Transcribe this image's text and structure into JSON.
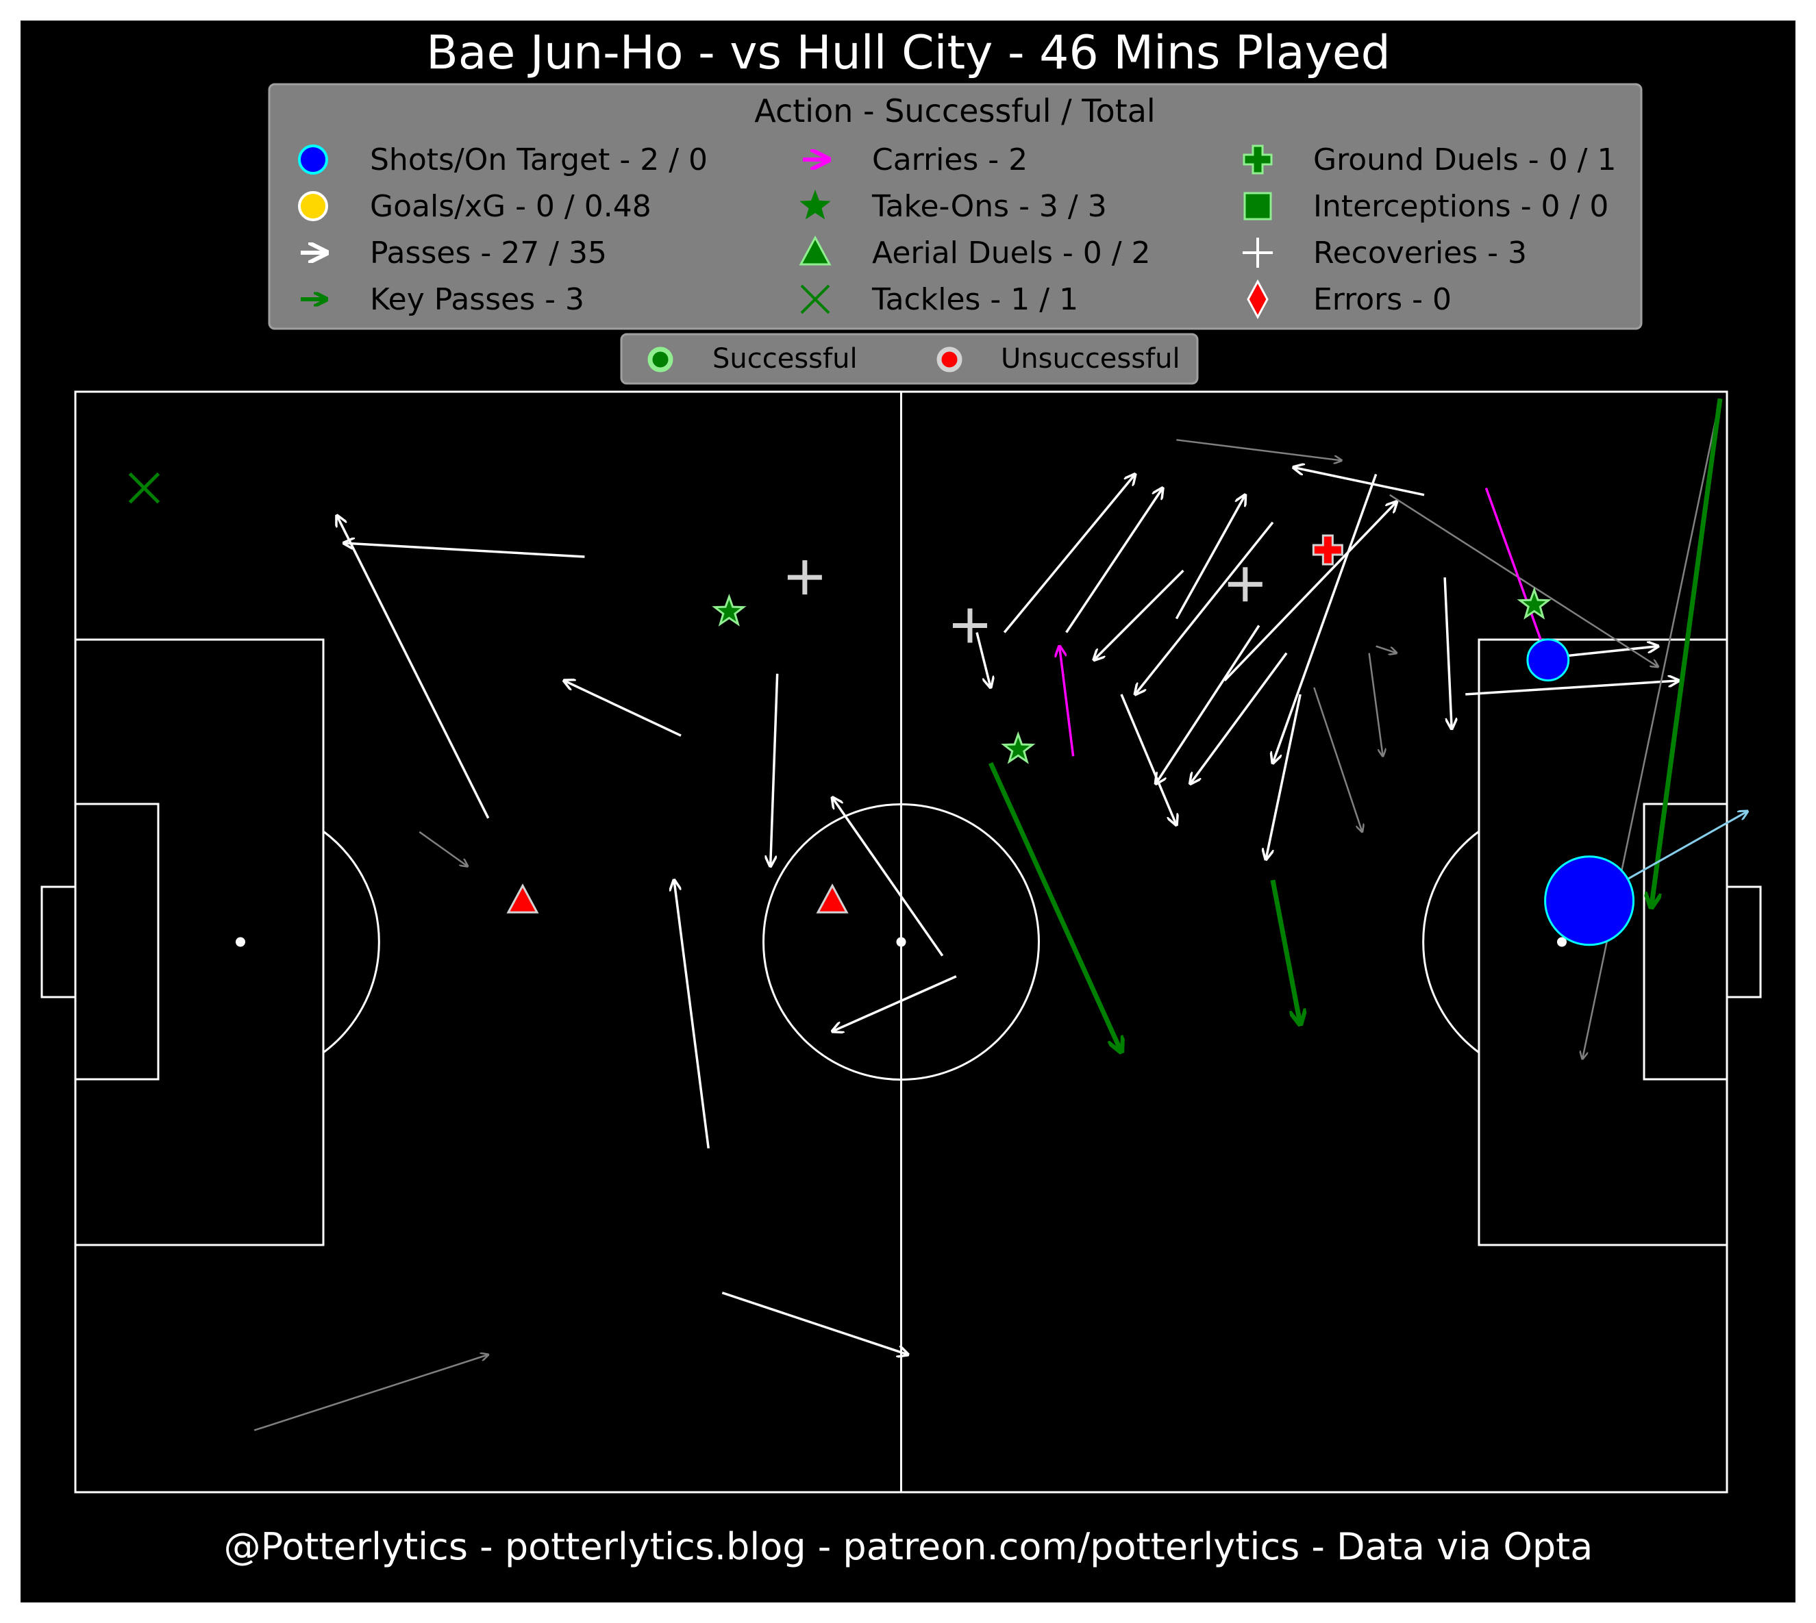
{
  "title": "Bae Jun-Ho - vs Hull City - 46 Mins Played",
  "footer": "@Potterlytics - potterlytics.blog - patreon.com/potterlytics - Data via Opta",
  "colors": {
    "background": "#000000",
    "pitch_lines": "#ffffff",
    "legend_box": "#808080",
    "pass": "#ffffff",
    "pass_unsuccessful": "#808080",
    "key_pass": "#008000",
    "carry": "#ff00ff",
    "shot": "#0000ff",
    "shot_edge": "#00ffff",
    "goal": "#ffd700",
    "success_marker": "#90ee90",
    "fail_marker": "#ff0000",
    "recovery": "#d3d3d3",
    "tackle": "#008000",
    "error": "#ff0000",
    "shot_trajectory": "#87ceeb"
  },
  "legend": {
    "title": "Action - Successful / Total",
    "items": [
      {
        "label": "Shots/On Target - 2 / 0",
        "icon": "shot-circle-icon"
      },
      {
        "label": "Goals/xG - 0 / 0.48",
        "icon": "goal-circle-icon"
      },
      {
        "label": "Passes - 27 / 35",
        "icon": "pass-arrow-icon"
      },
      {
        "label": "Key Passes - 3",
        "icon": "key-pass-arrow-icon"
      },
      {
        "label": "Carries - 2",
        "icon": "carry-arrow-icon"
      },
      {
        "label": "Take-Ons - 3 / 3",
        "icon": "take-on-star-icon"
      },
      {
        "label": "Aerial Duels - 0 / 2",
        "icon": "aerial-triangle-icon"
      },
      {
        "label": "Tackles - 1 / 1",
        "icon": "tackle-x-icon"
      },
      {
        "label": "Ground Duels - 0 / 1",
        "icon": "ground-duel-cross-icon"
      },
      {
        "label": "Interceptions - 0 / 0",
        "icon": "interception-square-icon"
      },
      {
        "label": "Recoveries - 3",
        "icon": "recovery-plus-icon"
      },
      {
        "label": "Errors - 0",
        "icon": "error-diamond-icon"
      }
    ]
  },
  "outcome_legend": {
    "successful": "Successful",
    "unsuccessful": "Unsuccessful"
  },
  "chart_data": {
    "type": "scatter",
    "pitch": {
      "length": 120,
      "width": 80,
      "attacking_direction": "left-to-right"
    },
    "passes": [
      {
        "x": [
          37.0,
          19.5
        ],
        "y": [
          12.0,
          11.0
        ],
        "success": true
      },
      {
        "x": [
          30.0,
          19.0
        ],
        "y": [
          31.0,
          9.0
        ],
        "success": true
      },
      {
        "x": [
          44.0,
          35.5
        ],
        "y": [
          25.0,
          21.0
        ],
        "success": true
      },
      {
        "x": [
          51.0,
          50.5
        ],
        "y": [
          20.5,
          34.5
        ],
        "success": true
      },
      {
        "x": [
          46.0,
          43.5
        ],
        "y": [
          55.0,
          35.5
        ],
        "success": true
      },
      {
        "x": [
          64.0,
          55.0
        ],
        "y": [
          42.5,
          46.5
        ],
        "success": true
      },
      {
        "x": [
          63.0,
          55.0
        ],
        "y": [
          41.0,
          29.5
        ],
        "success": true
      },
      {
        "x": [
          47.0,
          60.5
        ],
        "y": [
          65.5,
          70.0
        ],
        "success": true
      },
      {
        "x": [
          65.5,
          66.5
        ],
        "y": [
          17.5,
          21.5
        ],
        "success": true
      },
      {
        "x": [
          67.5,
          77.0
        ],
        "y": [
          17.5,
          6.0
        ],
        "success": true
      },
      {
        "x": [
          72.0,
          79.0
        ],
        "y": [
          17.5,
          7.0
        ],
        "success": true
      },
      {
        "x": [
          80.5,
          74.0
        ],
        "y": [
          13.0,
          19.5
        ],
        "success": true
      },
      {
        "x": [
          80.0,
          85.0
        ],
        "y": [
          16.5,
          7.5
        ],
        "success": true
      },
      {
        "x": [
          87.0,
          77.0
        ],
        "y": [
          9.5,
          22.0
        ],
        "success": true
      },
      {
        "x": [
          83.5,
          96.0
        ],
        "y": [
          21.0,
          8.0
        ],
        "success": true
      },
      {
        "x": [
          86.0,
          78.5
        ],
        "y": [
          17.0,
          28.5
        ],
        "success": true
      },
      {
        "x": [
          88.0,
          81.0
        ],
        "y": [
          19.0,
          28.5
        ],
        "success": true
      },
      {
        "x": [
          76.0,
          80.0
        ],
        "y": [
          22.0,
          31.5
        ],
        "success": true
      },
      {
        "x": [
          98.0,
          88.5
        ],
        "y": [
          7.5,
          5.5
        ],
        "success": true
      },
      {
        "x": [
          94.5,
          87.0
        ],
        "y": [
          6.0,
          27.0
        ],
        "success": true
      },
      {
        "x": [
          89.0,
          86.5
        ],
        "y": [
          22.0,
          34.0
        ],
        "success": true
      },
      {
        "x": [
          99.5,
          100.0
        ],
        "y": [
          13.5,
          24.5
        ],
        "success": true
      },
      {
        "x": [
          101.0,
          116.5
        ],
        "y": [
          22.0,
          21.0
        ],
        "success": true
      },
      {
        "x": [
          105.5,
          115.0
        ],
        "y": [
          19.5,
          18.5
        ],
        "success": true
      },
      {
        "x": [
          94.5,
          96.0
        ],
        "y": [
          18.5,
          19.0
        ],
        "success": false
      },
      {
        "x": [
          80.0,
          92.0
        ],
        "y": [
          3.5,
          5.0
        ],
        "success": false
      },
      {
        "x": [
          95.5,
          115.0
        ],
        "y": [
          7.5,
          20.0
        ],
        "success": false
      },
      {
        "x": [
          119.5,
          109.5
        ],
        "y": [
          0.5,
          48.5
        ],
        "success": false
      },
      {
        "x": [
          94.0,
          95.0
        ],
        "y": [
          19.0,
          26.5
        ],
        "success": false
      },
      {
        "x": [
          90.0,
          93.5
        ],
        "y": [
          21.5,
          32.0
        ],
        "success": false
      },
      {
        "x": [
          25.0,
          28.5
        ],
        "y": [
          32.0,
          34.5
        ],
        "success": false
      },
      {
        "x": [
          13.0,
          30.0
        ],
        "y": [
          75.5,
          70.0
        ],
        "success": false
      }
    ],
    "key_passes": [
      {
        "x": [
          66.5,
          76.0
        ],
        "y": [
          27.0,
          48.0
        ]
      },
      {
        "x": [
          87.0,
          89.0
        ],
        "y": [
          35.5,
          46.0
        ]
      },
      {
        "x": [
          119.5,
          114.5
        ],
        "y": [
          0.5,
          37.5
        ]
      }
    ],
    "carries": [
      {
        "x": [
          102.5,
          107.0
        ],
        "y": [
          7.0,
          19.5
        ]
      },
      {
        "x": [
          72.5,
          71.5
        ],
        "y": [
          26.5,
          18.5
        ]
      }
    ],
    "shots": [
      {
        "x": 107.0,
        "y": 19.5,
        "xg": 0.05,
        "on_target": false
      },
      {
        "x": 110.0,
        "y": 37.0,
        "xg": 0.43,
        "on_target": false,
        "end_x": 121.5,
        "end_y": 30.5
      }
    ],
    "take_ons": [
      {
        "x": 47.5,
        "y": 16.0,
        "success": true
      },
      {
        "x": 68.5,
        "y": 26.0,
        "success": true
      },
      {
        "x": 106.0,
        "y": 15.5,
        "success": true
      }
    ],
    "aerial_duels": [
      {
        "x": 32.5,
        "y": 37.0,
        "success": false
      },
      {
        "x": 55.0,
        "y": 37.0,
        "success": false
      }
    ],
    "tackles": [
      {
        "x": 5.0,
        "y": 7.0,
        "success": true
      }
    ],
    "ground_duels": [
      {
        "x": 91.0,
        "y": 11.5,
        "success": false
      }
    ],
    "recoveries": [
      {
        "x": 53.0,
        "y": 13.5
      },
      {
        "x": 65.0,
        "y": 17.0
      },
      {
        "x": 85.0,
        "y": 14.0
      }
    ]
  }
}
